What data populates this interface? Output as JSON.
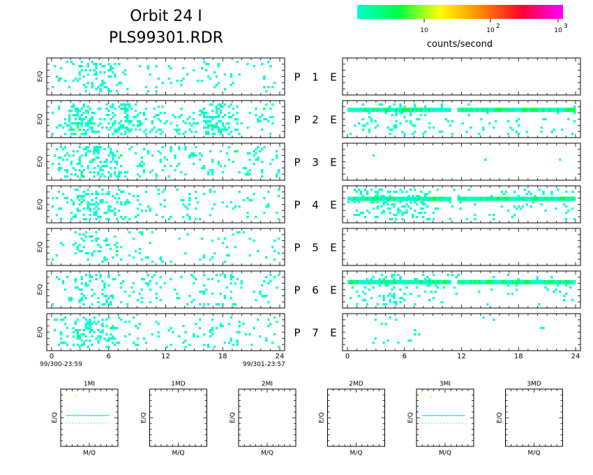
{
  "header": {
    "title_line1": "Orbit 24 I",
    "title_line2": "PLS99301.RDR"
  },
  "colorbar": {
    "stops": [
      "#00ffcc",
      "#00ff44",
      "#ffff00",
      "#ff8800",
      "#ff0033",
      "#ff00ff"
    ],
    "tick_labels": [
      "10",
      "10",
      "10"
    ],
    "tick_exponents": [
      "",
      "2",
      "3"
    ],
    "unit_label": "counts/second"
  },
  "colors": {
    "low": "#00ffcc",
    "mid": "#00ff44",
    "high": "#ffff00",
    "axis": "#000000"
  },
  "chart_data": [
    {
      "type": "heatmap",
      "name": "ion spectrograms",
      "ylabel": "E/Q",
      "x_ticks": [
        0,
        6,
        12,
        18,
        24
      ],
      "xlim": [
        0,
        24
      ],
      "x_start_label": "99/300-23:59",
      "x_end_label": "99/301-23:57",
      "rows": [
        {
          "prefix": "P",
          "index": "1",
          "density": 0.34,
          "peaks": [
            3.5,
            5.0
          ]
        },
        {
          "prefix": "P",
          "index": "2",
          "density": 0.62,
          "peaks": [
            3.0,
            7.5,
            17.0
          ]
        },
        {
          "prefix": "P",
          "index": "3",
          "density": 0.48,
          "peaks": [
            3.5,
            5.5
          ]
        },
        {
          "prefix": "P",
          "index": "4",
          "density": 0.4,
          "peaks": [
            3.5,
            6.5
          ]
        },
        {
          "prefix": "P",
          "index": "5",
          "density": 0.22,
          "peaks": [
            4.0,
            6.0
          ]
        },
        {
          "prefix": "P",
          "index": "6",
          "density": 0.36,
          "peaks": [
            3.5,
            5.5
          ]
        },
        {
          "prefix": "P",
          "index": "7",
          "density": 0.4,
          "peaks": [
            3.5,
            5.5
          ]
        }
      ]
    },
    {
      "type": "heatmap",
      "name": "electron spectrograms",
      "ylabel": "",
      "x_ticks": [
        0,
        6,
        12,
        18,
        24
      ],
      "xlim": [
        0,
        24
      ],
      "rows": [
        {
          "label": "E",
          "band": false,
          "density": 0.0,
          "band_level": 0.0
        },
        {
          "label": "E",
          "band": true,
          "density": 0.18,
          "band_level": 0.75
        },
        {
          "label": "E",
          "band": false,
          "density": 0.01,
          "band_level": 0.0
        },
        {
          "label": "E",
          "band": true,
          "density": 0.3,
          "band_level": 0.65
        },
        {
          "label": "E",
          "band": false,
          "density": 0.0,
          "band_level": 0.0
        },
        {
          "label": "E",
          "band": true,
          "density": 0.2,
          "band_level": 0.7
        },
        {
          "label": "E",
          "band": false,
          "density": 0.04,
          "band_level": 0.0
        }
      ]
    },
    {
      "type": "scatter",
      "name": "mass spectra",
      "xlabel": "M/Q",
      "ylabel": "E/Q",
      "panels": [
        {
          "title": "1MI",
          "has_data": true
        },
        {
          "title": "1MD",
          "has_data": false
        },
        {
          "title": "2MI",
          "has_data": false
        },
        {
          "title": "2MD",
          "has_data": false
        },
        {
          "title": "3MI",
          "has_data": true
        },
        {
          "title": "3MD",
          "has_data": false
        }
      ]
    }
  ]
}
